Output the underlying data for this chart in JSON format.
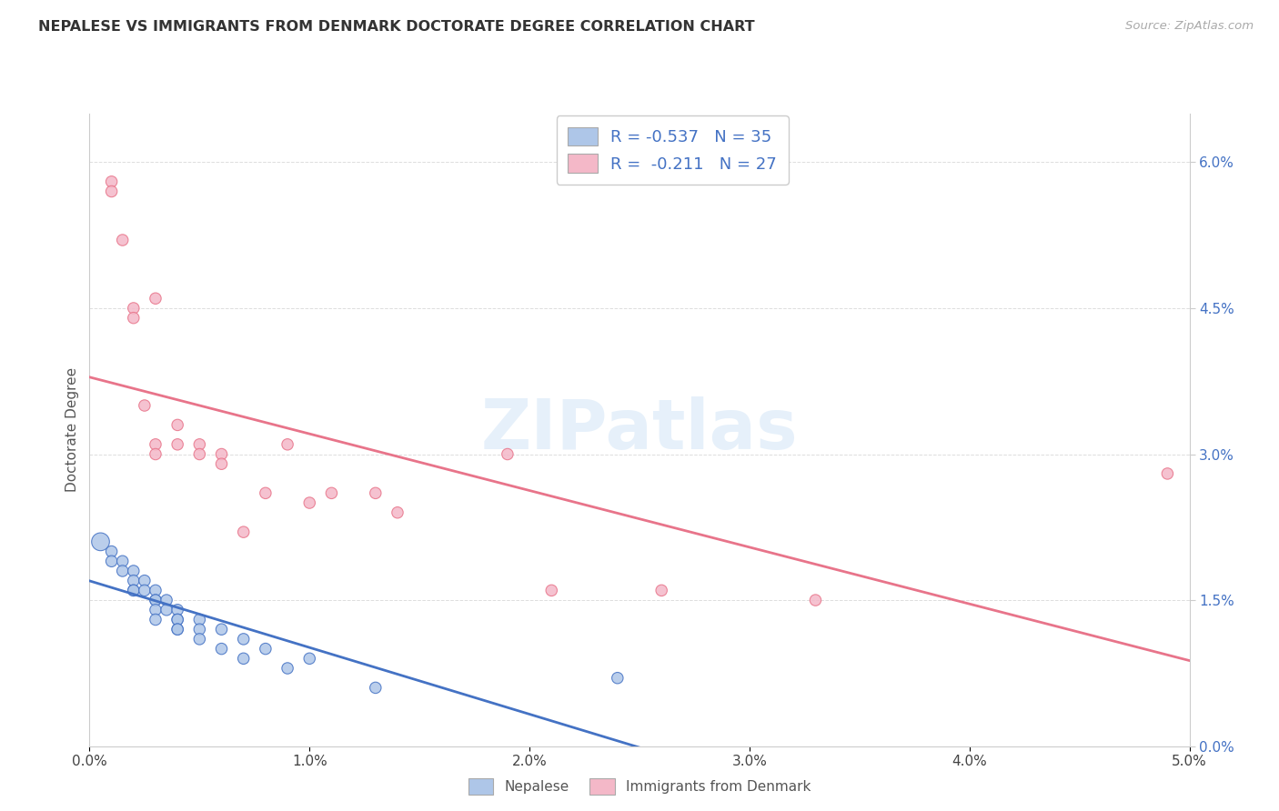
{
  "title": "NEPALESE VS IMMIGRANTS FROM DENMARK DOCTORATE DEGREE CORRELATION CHART",
  "source": "Source: ZipAtlas.com",
  "ylabel_label": "Doctorate Degree",
  "legend_label1": "Nepalese",
  "legend_label2": "Immigrants from Denmark",
  "legend_R1": "-0.537",
  "legend_N1": "35",
  "legend_R2": "-0.211",
  "legend_N2": "27",
  "color_blue": "#aec6e8",
  "color_pink": "#f4b8c8",
  "color_blue_line": "#4472c4",
  "color_pink_line": "#e8748a",
  "watermark": "ZIPatlas",
  "xlim": [
    0.0,
    0.05
  ],
  "ylim": [
    0.0,
    0.065
  ],
  "x_tick_vals": [
    0.0,
    0.01,
    0.02,
    0.03,
    0.04,
    0.05
  ],
  "y_tick_vals": [
    0.0,
    0.015,
    0.03,
    0.045,
    0.06
  ],
  "nepalese_x": [
    0.0005,
    0.001,
    0.001,
    0.0015,
    0.0015,
    0.002,
    0.002,
    0.002,
    0.002,
    0.0025,
    0.0025,
    0.003,
    0.003,
    0.003,
    0.003,
    0.003,
    0.0035,
    0.0035,
    0.004,
    0.004,
    0.004,
    0.004,
    0.004,
    0.005,
    0.005,
    0.005,
    0.006,
    0.006,
    0.007,
    0.007,
    0.008,
    0.009,
    0.01,
    0.013,
    0.024
  ],
  "nepalese_y": [
    0.021,
    0.02,
    0.019,
    0.019,
    0.018,
    0.018,
    0.017,
    0.016,
    0.016,
    0.017,
    0.016,
    0.016,
    0.015,
    0.015,
    0.014,
    0.013,
    0.015,
    0.014,
    0.014,
    0.013,
    0.013,
    0.012,
    0.012,
    0.013,
    0.012,
    0.011,
    0.012,
    0.01,
    0.011,
    0.009,
    0.01,
    0.008,
    0.009,
    0.006,
    0.007
  ],
  "nepalese_sizes": [
    200,
    80,
    80,
    80,
    80,
    80,
    80,
    80,
    80,
    80,
    80,
    80,
    80,
    80,
    80,
    80,
    80,
    80,
    80,
    80,
    80,
    80,
    80,
    80,
    80,
    80,
    80,
    80,
    80,
    80,
    80,
    80,
    80,
    80,
    80
  ],
  "denmark_x": [
    0.001,
    0.001,
    0.0015,
    0.002,
    0.002,
    0.0025,
    0.003,
    0.003,
    0.003,
    0.004,
    0.004,
    0.005,
    0.005,
    0.006,
    0.006,
    0.007,
    0.008,
    0.009,
    0.01,
    0.011,
    0.013,
    0.014,
    0.019,
    0.021,
    0.026,
    0.033,
    0.049
  ],
  "denmark_y": [
    0.058,
    0.057,
    0.052,
    0.045,
    0.044,
    0.035,
    0.046,
    0.031,
    0.03,
    0.031,
    0.033,
    0.031,
    0.03,
    0.03,
    0.029,
    0.022,
    0.026,
    0.031,
    0.025,
    0.026,
    0.026,
    0.024,
    0.03,
    0.016,
    0.016,
    0.015,
    0.028
  ],
  "denmark_sizes": [
    80,
    80,
    80,
    80,
    80,
    80,
    80,
    80,
    80,
    80,
    80,
    80,
    80,
    80,
    80,
    80,
    80,
    80,
    80,
    80,
    80,
    80,
    80,
    80,
    80,
    80,
    80
  ]
}
